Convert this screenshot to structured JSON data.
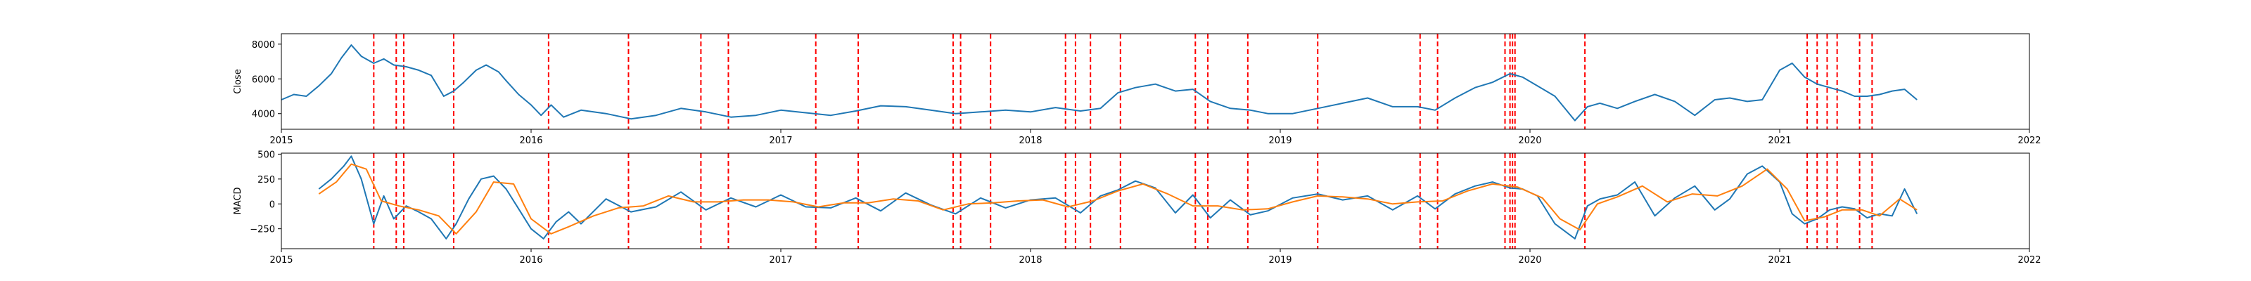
{
  "colors": {
    "close": "#1f77b4",
    "macd": "#1f77b4",
    "signal": "#ff7f0e",
    "event": "#ff0000",
    "axes": "#000000"
  },
  "chart_data": [
    {
      "type": "line",
      "title": "",
      "xlabel": "",
      "ylabel": "Close",
      "xlim": [
        2015.0,
        2022.0
      ],
      "ylim": [
        3100,
        8600
      ],
      "x_tick_labels": [
        "2015",
        "2016",
        "2017",
        "2018",
        "2019",
        "2020",
        "2021",
        "2022"
      ],
      "x_ticks": [
        2015,
        2016,
        2017,
        2018,
        2019,
        2020,
        2021,
        2022
      ],
      "y_ticks": [
        4000,
        6000,
        8000
      ],
      "y_tick_labels": [
        "4000",
        "6000",
        "8000"
      ],
      "grid": false,
      "event_lines_style": "red dashed vertical",
      "series": [
        {
          "values_x": [
            2015.0,
            2015.05,
            2015.1,
            2015.15,
            2015.2,
            2015.24,
            2015.28,
            2015.32,
            2015.37,
            2015.41,
            2015.45,
            2015.5,
            2015.55,
            2015.6,
            2015.65,
            2015.69,
            2015.73,
            2015.78,
            2015.82,
            2015.87,
            2015.9,
            2015.95,
            2016.0,
            2016.04,
            2016.08,
            2016.13,
            2016.2,
            2016.3,
            2016.4,
            2016.5,
            2016.6,
            2016.7,
            2016.8,
            2016.9,
            2017.0,
            2017.1,
            2017.2,
            2017.3,
            2017.4,
            2017.5,
            2017.6,
            2017.7,
            2017.8,
            2017.9,
            2018.0,
            2018.1,
            2018.2,
            2018.28,
            2018.35,
            2018.42,
            2018.5,
            2018.58,
            2018.65,
            2018.72,
            2018.8,
            2018.88,
            2018.95,
            2019.05,
            2019.15,
            2019.25,
            2019.35,
            2019.45,
            2019.55,
            2019.62,
            2019.7,
            2019.78,
            2019.85,
            2019.92,
            2019.97,
            2020.03,
            2020.1,
            2020.18,
            2020.23,
            2020.28,
            2020.35,
            2020.42,
            2020.5,
            2020.58,
            2020.66,
            2020.74,
            2020.8,
            2020.87,
            2020.93,
            2021.0,
            2021.05,
            2021.1,
            2021.15,
            2021.2,
            2021.25,
            2021.3,
            2021.35,
            2021.4,
            2021.45,
            2021.5,
            2021.55
          ],
          "values_y": [
            4800,
            5100,
            5000,
            5600,
            6300,
            7200,
            7950,
            7300,
            6900,
            7150,
            6800,
            6700,
            6500,
            6200,
            5000,
            5300,
            5800,
            6500,
            6800,
            6400,
            5900,
            5100,
            4500,
            3900,
            4500,
            3800,
            4200,
            4000,
            3700,
            3900,
            4300,
            4100,
            3800,
            3900,
            4200,
            4050,
            3900,
            4150,
            4450,
            4400,
            4200,
            4000,
            4100,
            4200,
            4100,
            4350,
            4150,
            4300,
            5200,
            5500,
            5700,
            5300,
            5400,
            4700,
            4300,
            4200,
            4000,
            4000,
            4300,
            4600,
            4900,
            4400,
            4400,
            4200,
            4900,
            5500,
            5800,
            6300,
            6100,
            5600,
            5000,
            3600,
            4400,
            4600,
            4300,
            4700,
            5100,
            4700,
            3900,
            4800,
            4900,
            4700,
            4800,
            6500,
            6900,
            6100,
            5700,
            5500,
            5300,
            5000,
            5000,
            5100,
            5300,
            5400,
            4800
          ]
        }
      ],
      "event_dates": [
        2015.37,
        2015.46,
        2015.49,
        2015.69,
        2016.07,
        2016.39,
        2016.68,
        2016.79,
        2017.14,
        2017.31,
        2017.69,
        2017.72,
        2017.84,
        2018.14,
        2018.18,
        2018.24,
        2018.36,
        2018.66,
        2018.71,
        2018.87,
        2019.15,
        2019.56,
        2019.63,
        2019.9,
        2019.92,
        2019.93,
        2019.94,
        2020.22,
        2021.11,
        2021.15,
        2021.19,
        2021.23,
        2021.32,
        2021.37
      ]
    },
    {
      "type": "line",
      "title": "",
      "xlabel": "",
      "ylabel": "MACD",
      "xlim": [
        2015.0,
        2022.0
      ],
      "ylim": [
        -450,
        510
      ],
      "x_tick_labels": [
        "2015",
        "2016",
        "2017",
        "2018",
        "2019",
        "2020",
        "2021",
        "2022"
      ],
      "x_ticks": [
        2015,
        2016,
        2017,
        2018,
        2019,
        2020,
        2021,
        2022
      ],
      "y_ticks": [
        -250,
        0,
        250,
        500
      ],
      "y_tick_labels": [
        "−250",
        "0",
        "250",
        "500"
      ],
      "grid": false,
      "event_lines_style": "red dashed vertical",
      "series": [
        {
          "values_x": [
            2015.15,
            2015.2,
            2015.25,
            2015.28,
            2015.32,
            2015.37,
            2015.41,
            2015.45,
            2015.5,
            2015.55,
            2015.6,
            2015.66,
            2015.7,
            2015.75,
            2015.8,
            2015.85,
            2015.9,
            2015.95,
            2016.0,
            2016.05,
            2016.1,
            2016.15,
            2016.2,
            2016.3,
            2016.4,
            2016.5,
            2016.6,
            2016.7,
            2016.8,
            2016.9,
            2017.0,
            2017.1,
            2017.2,
            2017.3,
            2017.4,
            2017.5,
            2017.6,
            2017.7,
            2017.8,
            2017.9,
            2018.0,
            2018.1,
            2018.2,
            2018.28,
            2018.35,
            2018.42,
            2018.5,
            2018.58,
            2018.65,
            2018.72,
            2018.8,
            2018.88,
            2018.95,
            2019.05,
            2019.15,
            2019.25,
            2019.35,
            2019.45,
            2019.55,
            2019.62,
            2019.7,
            2019.78,
            2019.85,
            2019.92,
            2019.97,
            2020.03,
            2020.1,
            2020.18,
            2020.23,
            2020.28,
            2020.35,
            2020.42,
            2020.5,
            2020.58,
            2020.66,
            2020.74,
            2020.8,
            2020.87,
            2020.93,
            2021.0,
            2021.05,
            2021.1,
            2021.15,
            2021.2,
            2021.25,
            2021.3,
            2021.35,
            2021.4,
            2021.45,
            2021.5,
            2021.55
          ],
          "values_y": [
            150,
            250,
            380,
            480,
            250,
            -200,
            80,
            -150,
            -20,
            -80,
            -150,
            -350,
            -200,
            50,
            250,
            280,
            150,
            -50,
            -250,
            -350,
            -180,
            -80,
            -200,
            50,
            -80,
            -30,
            120,
            -60,
            60,
            -30,
            90,
            -30,
            -40,
            60,
            -70,
            110,
            -10,
            -100,
            60,
            -40,
            40,
            60,
            -90,
            80,
            140,
            230,
            160,
            -90,
            90,
            -140,
            40,
            -110,
            -70,
            60,
            100,
            40,
            80,
            -60,
            80,
            -50,
            100,
            180,
            220,
            160,
            150,
            80,
            -200,
            -350,
            -20,
            50,
            90,
            220,
            -120,
            60,
            180,
            -60,
            50,
            300,
            380,
            220,
            -100,
            -200,
            -150,
            -60,
            -30,
            -50,
            -140,
            -100,
            -120,
            150,
            -100
          ]
        },
        {
          "values_x": [
            2015.15,
            2015.22,
            2015.28,
            2015.34,
            2015.4,
            2015.47,
            2015.55,
            2015.63,
            2015.7,
            2015.78,
            2015.85,
            2015.93,
            2016.0,
            2016.08,
            2016.15,
            2016.25,
            2016.35,
            2016.45,
            2016.55,
            2016.65,
            2016.75,
            2016.85,
            2016.95,
            2017.05,
            2017.15,
            2017.25,
            2017.35,
            2017.45,
            2017.55,
            2017.65,
            2017.75,
            2017.85,
            2017.95,
            2018.05,
            2018.15,
            2018.25,
            2018.35,
            2018.45,
            2018.55,
            2018.65,
            2018.75,
            2018.85,
            2018.95,
            2019.05,
            2019.15,
            2019.25,
            2019.35,
            2019.45,
            2019.55,
            2019.65,
            2019.75,
            2019.85,
            2019.95,
            2020.05,
            2020.12,
            2020.2,
            2020.27,
            2020.35,
            2020.45,
            2020.55,
            2020.65,
            2020.75,
            2020.85,
            2020.95,
            2021.03,
            2021.1,
            2021.18,
            2021.25,
            2021.33,
            2021.4,
            2021.48,
            2021.55
          ],
          "values_y": [
            100,
            220,
            400,
            350,
            30,
            -20,
            -60,
            -120,
            -300,
            -80,
            220,
            200,
            -150,
            -300,
            -230,
            -120,
            -40,
            -20,
            80,
            20,
            20,
            40,
            40,
            20,
            -30,
            10,
            10,
            50,
            30,
            -60,
            0,
            10,
            30,
            40,
            -30,
            30,
            130,
            200,
            100,
            -20,
            -20,
            -60,
            -50,
            20,
            80,
            70,
            50,
            0,
            20,
            30,
            130,
            200,
            170,
            60,
            -150,
            -260,
            0,
            70,
            180,
            20,
            100,
            80,
            180,
            350,
            150,
            -170,
            -130,
            -60,
            -60,
            -120,
            50,
            -60
          ]
        }
      ],
      "legend": [],
      "event_dates": [
        2015.37,
        2015.46,
        2015.49,
        2015.69,
        2016.07,
        2016.39,
        2016.68,
        2016.79,
        2017.14,
        2017.31,
        2017.69,
        2017.72,
        2017.84,
        2018.14,
        2018.18,
        2018.24,
        2018.36,
        2018.66,
        2018.71,
        2018.87,
        2019.15,
        2019.56,
        2019.63,
        2019.9,
        2019.92,
        2019.93,
        2019.94,
        2020.22,
        2021.11,
        2021.15,
        2021.19,
        2021.23,
        2021.32,
        2021.37
      ]
    }
  ]
}
